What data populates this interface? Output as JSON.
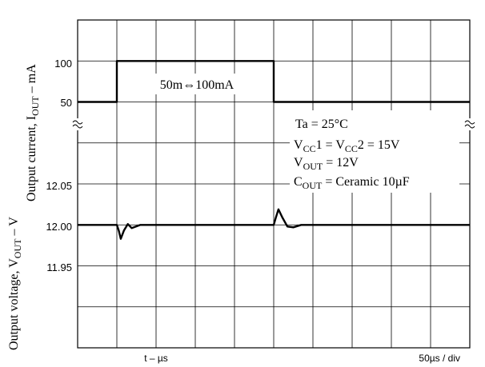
{
  "chart_data": {
    "type": "line",
    "y_label_voltage": "Output voltage,  V",
    "y_label_voltage_sub": "OUT",
    "y_label_voltage_unit": " – V",
    "y_label_current": "Output current,  I",
    "y_label_current_sub": "OUT",
    "y_label_current_unit": " – mA",
    "x_label": "t – µs",
    "x_scale_label": "50µs / div",
    "x_range": [
      0,
      10
    ],
    "current_ticks": [
      "100",
      "50"
    ],
    "voltage_ticks": [
      "12.05",
      "12.00",
      "11.95"
    ],
    "current_axis": {
      "value_at_top_grid": 150,
      "value_per_div": 50,
      "top_grid_index": 0
    },
    "voltage_axis": {
      "value_at_ref_grid": 12.0,
      "value_per_div": 0.05,
      "ref_grid_index": 5
    },
    "annotation_step": "50m⇔100mA",
    "conditions": {
      "ta": "Ta = 25°C",
      "vcc_a": "V",
      "vcc_a_sub": "CC",
      "vcc_a_rest": "1 = V",
      "vcc_b_sub": "CC",
      "vcc_b_rest": "2 = 15V",
      "vout": "V",
      "vout_sub": "OUT",
      "vout_rest": " = 12V",
      "cout": "C",
      "cout_sub": "OUT",
      "cout_rest": " = Ceramic 10µF"
    },
    "series": [
      {
        "key": "current",
        "x": [
          0,
          1,
          1,
          5,
          5,
          10
        ],
        "y": [
          50,
          50,
          100,
          100,
          50,
          50
        ]
      },
      {
        "key": "voltage",
        "x": [
          0,
          1,
          1.05,
          1.1,
          1.18,
          1.28,
          1.38,
          1.6,
          1.8,
          5,
          5.05,
          5.12,
          5.22,
          5.35,
          5.5,
          5.7,
          10
        ],
        "y": [
          12.0,
          12.0,
          11.993,
          11.983,
          11.993,
          12.001,
          11.996,
          12.0,
          12.0,
          12.0,
          12.008,
          12.019,
          12.009,
          11.998,
          11.997,
          12.0,
          12.0
        ]
      }
    ]
  }
}
